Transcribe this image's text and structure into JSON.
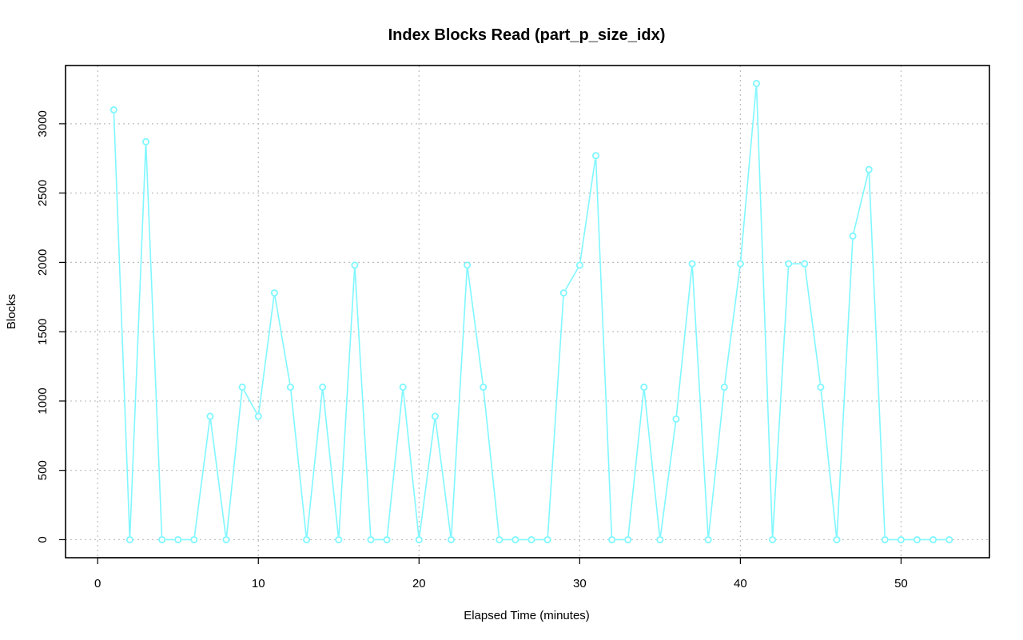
{
  "chart_data": {
    "type": "line",
    "title": "Index Blocks Read (part_p_size_idx)",
    "xlabel": "Elapsed Time (minutes)",
    "ylabel": "Blocks",
    "xlim": [
      -2,
      55.5
    ],
    "ylim": [
      -130,
      3420
    ],
    "x_ticks": [
      0,
      10,
      20,
      30,
      40,
      50
    ],
    "y_ticks": [
      0,
      500,
      1000,
      1500,
      2000,
      2500,
      3000
    ],
    "grid": true,
    "series": [
      {
        "color": "#7ff7ff",
        "x": [
          1,
          2,
          3,
          4,
          5,
          6,
          7,
          8,
          9,
          10,
          11,
          12,
          13,
          14,
          15,
          16,
          17,
          18,
          19,
          20,
          21,
          22,
          23,
          24,
          25,
          26,
          27,
          28,
          29,
          30,
          31,
          32,
          33,
          34,
          35,
          36,
          37,
          38,
          39,
          40,
          41,
          42,
          43,
          44,
          45,
          46,
          47,
          48,
          49,
          50,
          51,
          52,
          53
        ],
        "y": [
          3100,
          0,
          2870,
          0,
          0,
          0,
          890,
          0,
          1100,
          890,
          1780,
          1100,
          0,
          1100,
          0,
          1980,
          0,
          0,
          1100,
          0,
          890,
          0,
          1980,
          1100,
          0,
          0,
          0,
          0,
          1780,
          1980,
          2770,
          0,
          0,
          1100,
          0,
          870,
          1990,
          0,
          1100,
          1990,
          3290,
          0,
          1990,
          1990,
          1100,
          0,
          2190,
          2670,
          0,
          0,
          0,
          0,
          0
        ]
      }
    ]
  }
}
